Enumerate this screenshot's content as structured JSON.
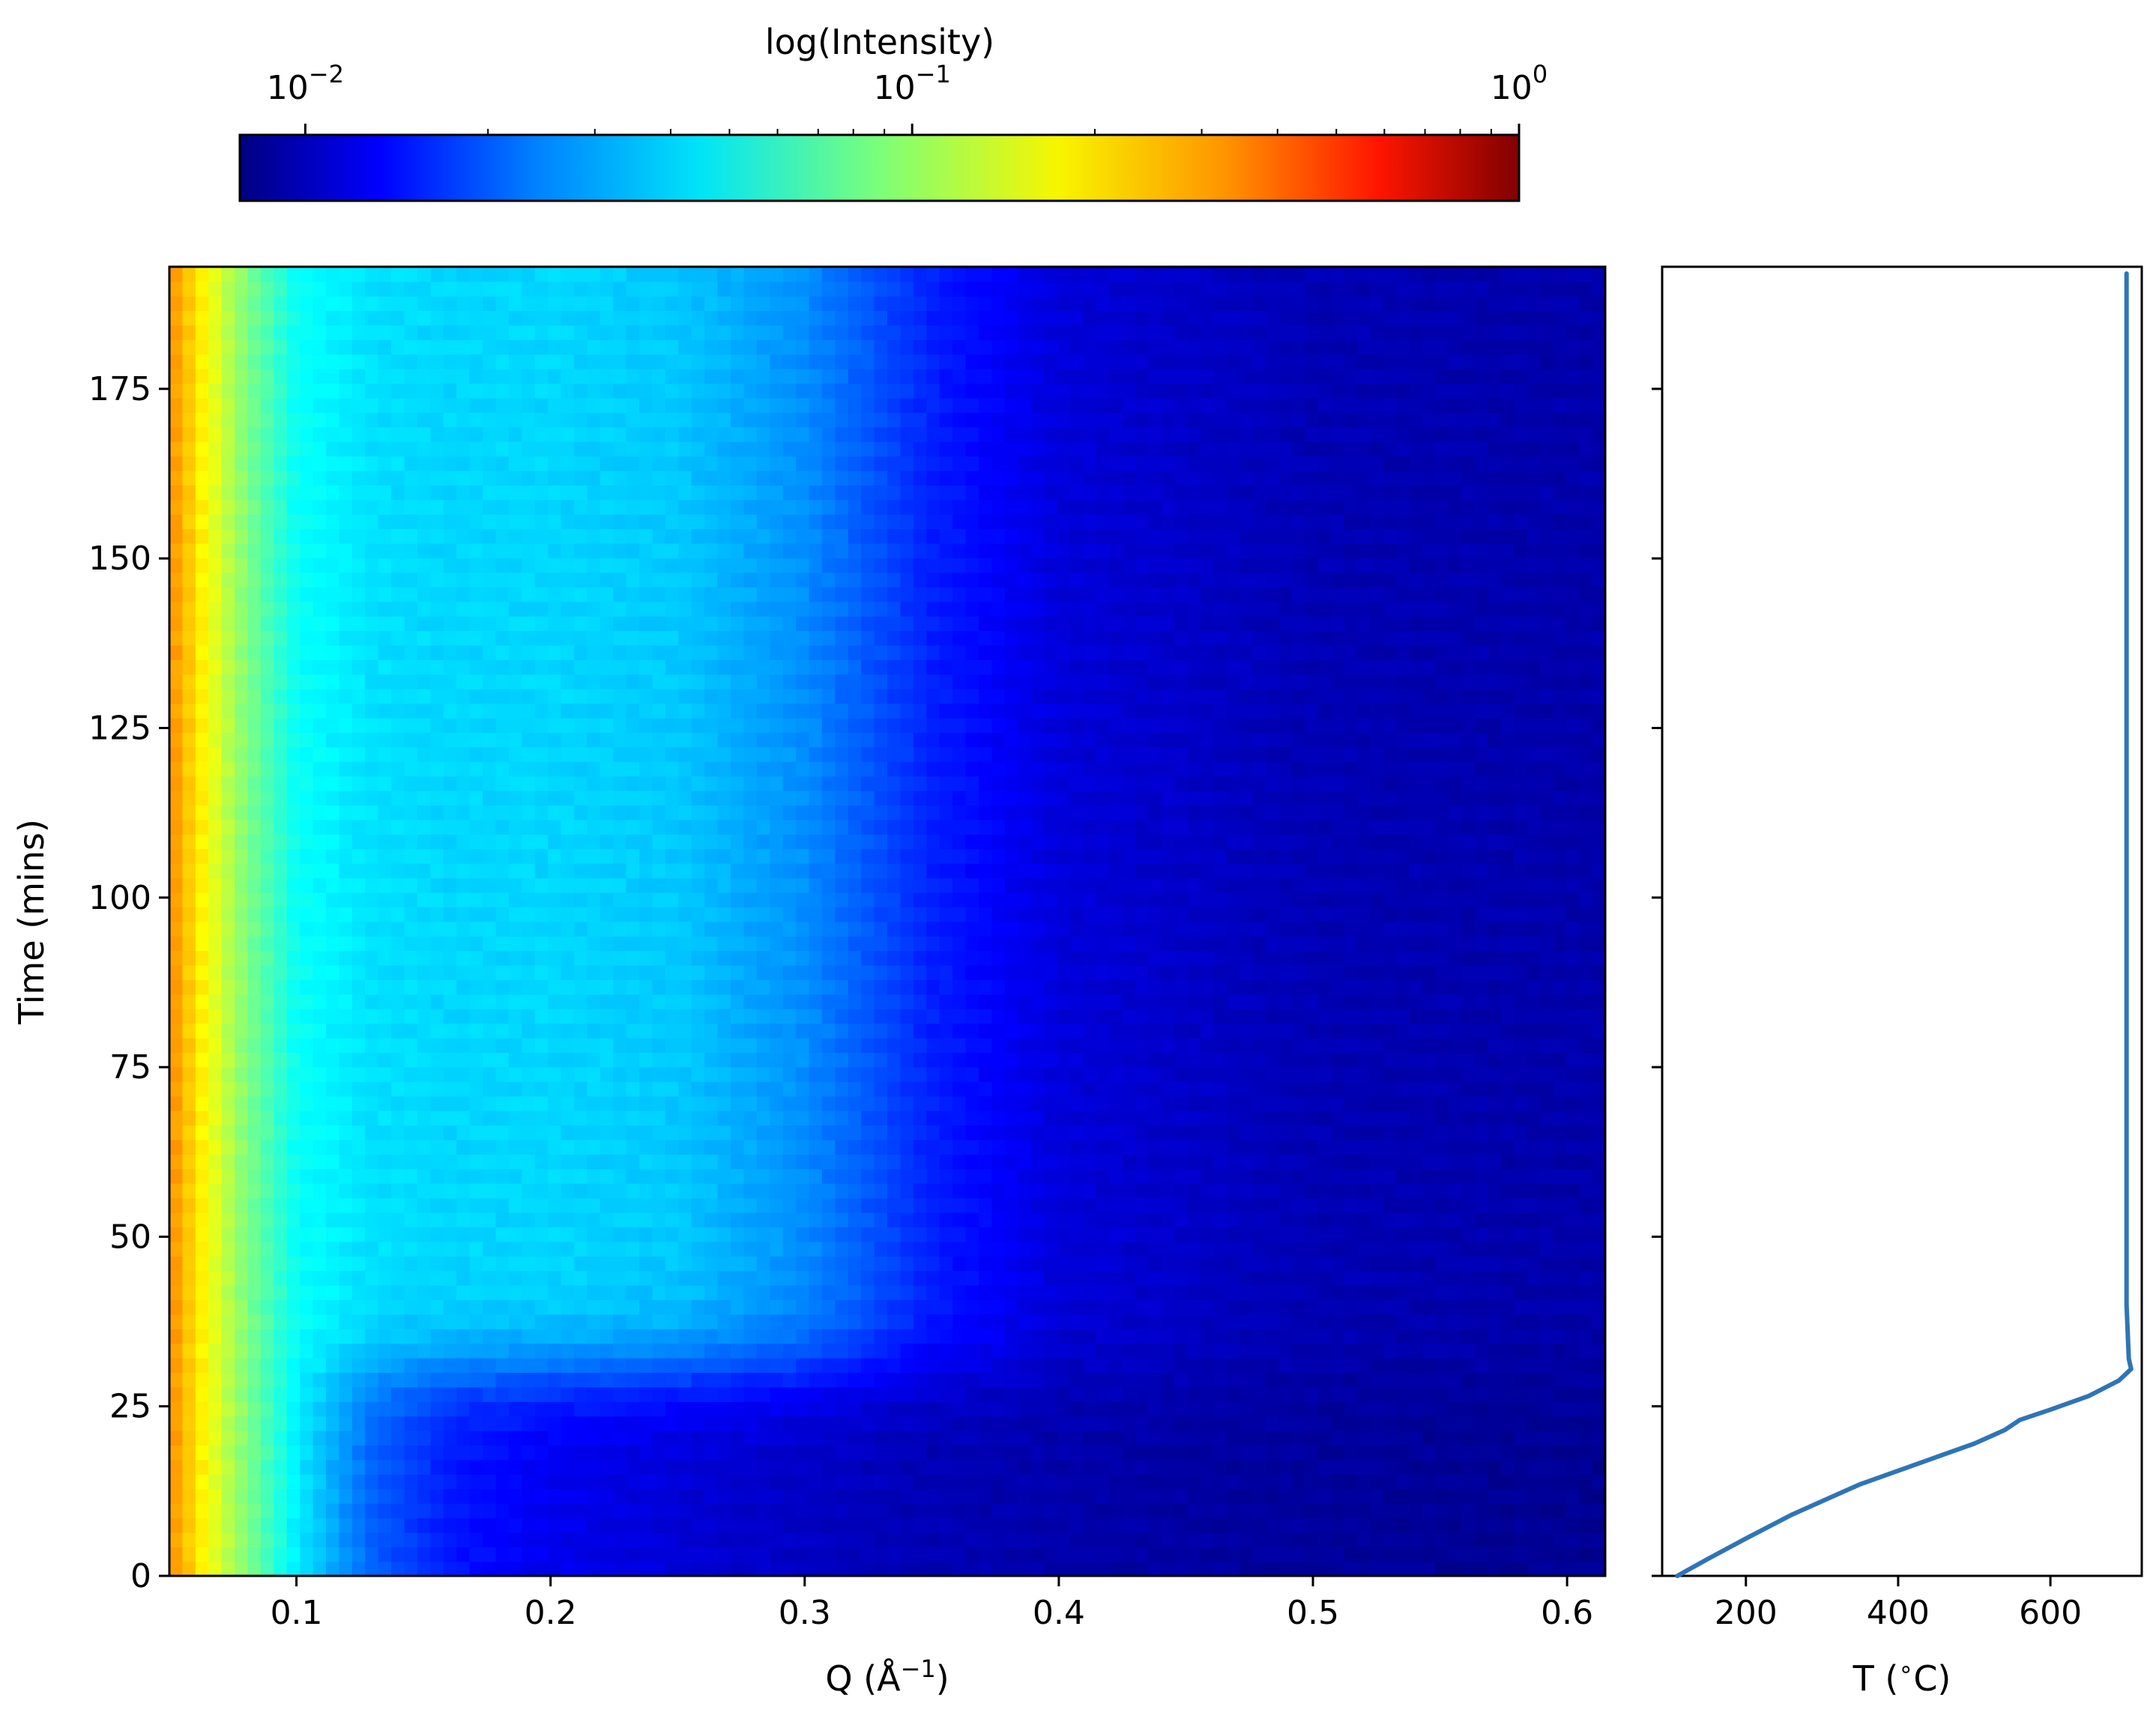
{
  "chart_data": [
    {
      "type": "heatmap",
      "title": "",
      "xlabel": "Q (Å",
      "xlabel_sup": "−1",
      "xlabel_suffix": ")",
      "ylabel": "Time (mins)",
      "xlim": [
        0.05,
        0.615
      ],
      "ylim": [
        0,
        193
      ],
      "xticks": [
        0.1,
        0.2,
        0.3,
        0.4,
        0.5,
        0.6
      ],
      "xtick_labels": [
        "0.1",
        "0.2",
        "0.3",
        "0.4",
        "0.5",
        "0.6"
      ],
      "yticks": [
        0,
        25,
        50,
        75,
        100,
        125,
        150,
        175
      ],
      "ytick_labels": [
        "0",
        "25",
        "50",
        "75",
        "100",
        "125",
        "150",
        "175"
      ],
      "colormap": "jet",
      "color_scale": "log",
      "intensity_profile": {
        "description_free_values": true,
        "q": [
          0.05,
          0.06,
          0.08,
          0.1,
          0.13,
          0.16,
          0.2,
          0.25,
          0.3,
          0.35,
          0.4,
          0.5,
          0.615
        ],
        "log10_intensity_at_time_0": [
          -0.55,
          -0.72,
          -1.05,
          -1.35,
          -1.65,
          -1.8,
          -1.88,
          -1.93,
          -1.97,
          -2.0,
          -2.02,
          -2.05,
          -2.07
        ],
        "log10_intensity_at_time_193": [
          -0.55,
          -0.72,
          -1.05,
          -1.3,
          -1.38,
          -1.4,
          -1.4,
          -1.43,
          -1.55,
          -1.78,
          -1.92,
          -2.0,
          -2.02
        ],
        "transition_time": 30
      }
    },
    {
      "type": "line",
      "title": "",
      "xlabel": "T (",
      "xlabel_sup": "∘",
      "xlabel_suffix": "C)",
      "ylabel": "",
      "xlim": [
        90,
        720
      ],
      "ylim": [
        0,
        193
      ],
      "xticks": [
        200,
        400,
        600
      ],
      "xtick_labels": [
        "200",
        "400",
        "600"
      ],
      "series": [
        {
          "color": "#2e75b6",
          "x": [
            110,
            150,
            200,
            260,
            300,
            350,
            400,
            450,
            500,
            540,
            560,
            600,
            650,
            690,
            706,
            703,
            700,
            700,
            700
          ],
          "y": [
            0,
            2.5,
            5.5,
            9,
            11,
            13.5,
            15.5,
            17.5,
            19.5,
            21.5,
            23,
            24.5,
            26.5,
            28.8,
            30.5,
            32,
            40,
            120,
            192
          ]
        }
      ]
    }
  ],
  "colorbar": {
    "label": "log(Intensity)",
    "scale": "log",
    "range": [
      0.0078,
      1.0
    ],
    "major_ticks": [
      {
        "value": 0.01,
        "base": "10",
        "exp": "−2"
      },
      {
        "value": 0.1,
        "base": "10",
        "exp": "−1"
      },
      {
        "value": 1.0,
        "base": "10",
        "exp": "0"
      }
    ],
    "minor_ticks": [
      0.02,
      0.03,
      0.04,
      0.05,
      0.06,
      0.07,
      0.08,
      0.09,
      0.2,
      0.3,
      0.4,
      0.5,
      0.6,
      0.7,
      0.8,
      0.9
    ]
  }
}
